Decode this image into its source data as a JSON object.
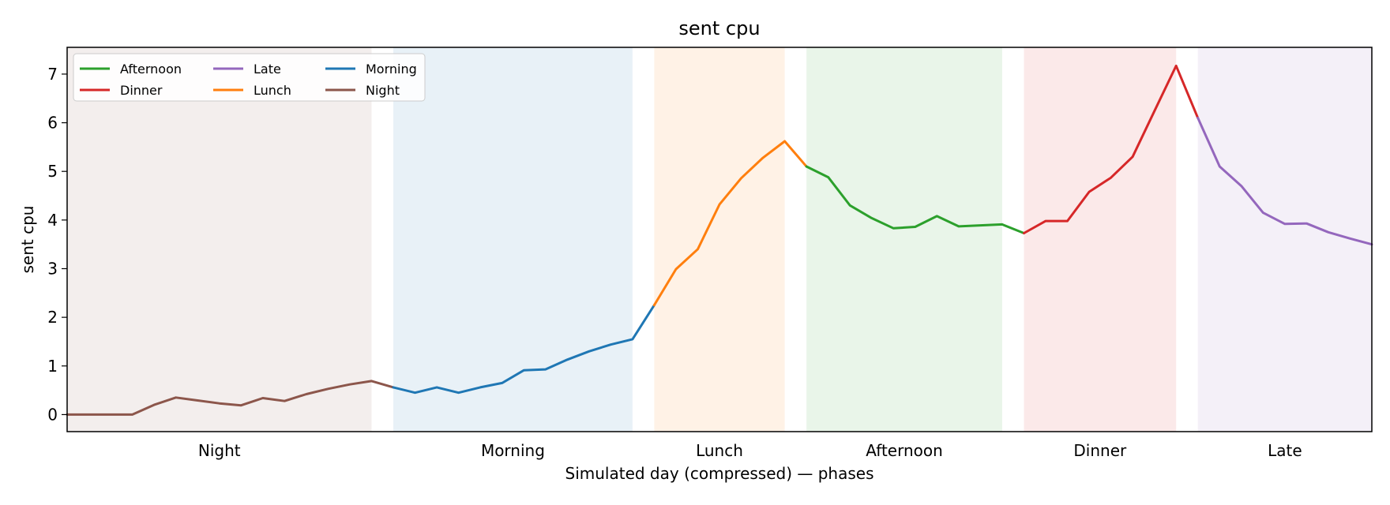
{
  "chart_data": {
    "type": "line",
    "title": "sent cpu",
    "xlabel": "Simulated day (compressed) — phases",
    "ylabel": "sent cpu",
    "ylim": [
      -0.35,
      7.55
    ],
    "yticks": [
      0,
      1,
      2,
      3,
      4,
      5,
      6,
      7
    ],
    "xlim": [
      0,
      60
    ],
    "grid": false,
    "legend_position": "top-left",
    "phases": [
      {
        "name": "Night",
        "start": 0,
        "end": 14,
        "label": "Night",
        "color": "#8c564b"
      },
      {
        "name": "Morning",
        "start": 15,
        "end": 26,
        "label": "Morning",
        "color": "#1f77b4"
      },
      {
        "name": "Lunch",
        "start": 27,
        "end": 33,
        "label": "Lunch",
        "color": "#ff7f0e"
      },
      {
        "name": "Afternoon",
        "start": 34,
        "end": 43,
        "label": "Afternoon",
        "color": "#2ca02c"
      },
      {
        "name": "Dinner",
        "start": 44,
        "end": 51,
        "label": "Dinner",
        "color": "#d62728"
      },
      {
        "name": "Late",
        "start": 52,
        "end": 60,
        "label": "Late",
        "color": "#9467bd"
      }
    ],
    "series": [
      {
        "name": "Night",
        "color": "#8c564b",
        "x": [
          0,
          1,
          2,
          3,
          4,
          5,
          6,
          7,
          8,
          9,
          10,
          11,
          12,
          13,
          14,
          15
        ],
        "values": [
          0,
          0,
          0,
          0,
          0.2,
          0.35,
          0.29,
          0.23,
          0.19,
          0.34,
          0.28,
          0.42,
          0.53,
          0.62,
          0.69,
          0.56
        ]
      },
      {
        "name": "Morning",
        "color": "#1f77b4",
        "x": [
          15,
          16,
          17,
          18,
          19,
          20,
          21,
          22,
          23,
          24,
          25,
          26,
          27
        ],
        "values": [
          0.56,
          0.45,
          0.56,
          0.45,
          0.56,
          0.65,
          0.91,
          0.93,
          1.13,
          1.3,
          1.44,
          1.55,
          2.25
        ]
      },
      {
        "name": "Lunch",
        "color": "#ff7f0e",
        "x": [
          27,
          28,
          29,
          30,
          31,
          32,
          33,
          34
        ],
        "values": [
          2.25,
          2.99,
          3.4,
          4.32,
          4.86,
          5.28,
          5.62,
          5.1
        ]
      },
      {
        "name": "Afternoon",
        "color": "#2ca02c",
        "x": [
          34,
          35,
          36,
          37,
          38,
          39,
          40,
          41,
          42,
          43,
          44
        ],
        "values": [
          5.1,
          4.88,
          4.3,
          4.04,
          3.83,
          3.86,
          4.08,
          3.87,
          3.89,
          3.91,
          3.73
        ]
      },
      {
        "name": "Dinner",
        "color": "#d62728",
        "x": [
          44,
          45,
          46,
          47,
          48,
          49,
          50,
          51,
          52
        ],
        "values": [
          3.73,
          3.98,
          3.98,
          4.58,
          4.87,
          5.3,
          6.24,
          7.17,
          6.1
        ]
      },
      {
        "name": "Late",
        "color": "#9467bd",
        "x": [
          52,
          53,
          54,
          55,
          56,
          57,
          58,
          59,
          60
        ],
        "values": [
          6.1,
          5.1,
          4.7,
          4.15,
          3.92,
          3.93,
          3.75,
          3.62,
          3.5
        ]
      }
    ],
    "legend": [
      "Afternoon",
      "Dinner",
      "Late",
      "Lunch",
      "Morning",
      "Night"
    ]
  }
}
